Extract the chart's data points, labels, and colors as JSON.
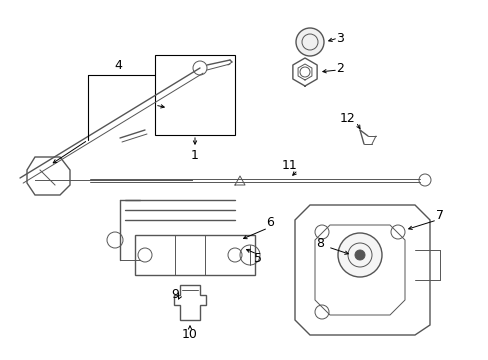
{
  "bg_color": "#ffffff",
  "line_color": "#555555",
  "label_color": "#000000",
  "fig_width": 4.89,
  "fig_height": 3.6,
  "dpi": 100
}
